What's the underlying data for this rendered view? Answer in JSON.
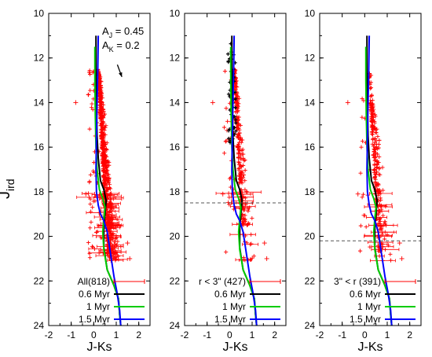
{
  "figure": {
    "ylabel_main": "J",
    "ylabel_sub": "ird"
  },
  "chart_data": [
    {
      "type": "scatter",
      "xlabel": "J-Ks",
      "xlim": [
        -2,
        2.5
      ],
      "ylim": [
        10,
        24
      ],
      "y_inverted": true,
      "xticks": [
        "-2",
        "-1",
        "0",
        "1",
        "2"
      ],
      "yticks": [
        "10",
        "12",
        "14",
        "16",
        "18",
        "20",
        "22",
        "24"
      ],
      "annotation": {
        "aj_label": "A",
        "aj_sub": "J",
        "aj_value": " = 0.45",
        "ak_label": "A",
        "ak_sub": "K",
        "ak_value": " = 0.2"
      },
      "reddening_arrow": {
        "from": [
          1.05,
          12.3
        ],
        "to": [
          1.25,
          12.85
        ]
      },
      "legend": [
        {
          "label": "All(818)",
          "color": "#ff0000",
          "style": "errorbar"
        },
        {
          "label": "0.6 Myr",
          "color": "#000000",
          "style": "line"
        },
        {
          "label": "1 Myr",
          "color": "#00cc00",
          "style": "line"
        },
        {
          "label": "1.5 Myr",
          "color": "#0000ff",
          "style": "line"
        }
      ],
      "dashed_hline": null,
      "highlight_black": false
    },
    {
      "type": "scatter",
      "xlabel": "J-Ks",
      "xlim": [
        -2,
        2.5
      ],
      "ylim": [
        10,
        24
      ],
      "y_inverted": true,
      "xticks": [
        "-2",
        "-1",
        "0",
        "1",
        "2"
      ],
      "yticks": [
        "10",
        "12",
        "14",
        "16",
        "18",
        "20",
        "22",
        "24"
      ],
      "legend": [
        {
          "label": "r < 3\" (427)",
          "color": "#ff0000",
          "style": "errorbar"
        },
        {
          "label": "0.6 Myr",
          "color": "#000000",
          "style": "line"
        },
        {
          "label": "1 Myr",
          "color": "#00cc00",
          "style": "line"
        },
        {
          "label": "1.5 Myr",
          "color": "#0000ff",
          "style": "line"
        }
      ],
      "dashed_hline": 18.5,
      "highlight_black": true
    },
    {
      "type": "scatter",
      "xlabel": "J-Ks",
      "xlim": [
        -2,
        2.5
      ],
      "ylim": [
        10,
        24
      ],
      "y_inverted": true,
      "xticks": [
        "-2",
        "-1",
        "0",
        "1",
        "2"
      ],
      "yticks": [
        "10",
        "12",
        "14",
        "16",
        "18",
        "20",
        "22",
        "24"
      ],
      "legend": [
        {
          "label": "3\" < r (391)",
          "color": "#ff0000",
          "style": "errorbar"
        },
        {
          "label": "0.6 Myr",
          "color": "#000000",
          "style": "line"
        },
        {
          "label": "1 Myr",
          "color": "#00cc00",
          "style": "line"
        },
        {
          "label": "1.5 Myr",
          "color": "#0000ff",
          "style": "line"
        }
      ],
      "dashed_hline": 20.2,
      "highlight_black": false
    }
  ],
  "isochrones": {
    "0.6 Myr": {
      "color": "#000000",
      "x": [
        0.1,
        0.1,
        0.12,
        0.15,
        0.2,
        0.3,
        0.45,
        0.55,
        0.5,
        0.45,
        0.45,
        0.6,
        0.9,
        1.1,
        1.15,
        1.2
      ],
      "y": [
        11.0,
        12.5,
        14.0,
        15.5,
        16.5,
        17.5,
        17.9,
        18.4,
        19.0,
        19.6,
        20.5,
        21.5,
        22.2,
        22.8,
        23.5,
        24.0
      ]
    },
    "1 Myr": {
      "color": "#00cc00",
      "x": [
        0.05,
        0.05,
        0.07,
        0.1,
        0.15,
        0.25,
        0.4,
        0.5,
        0.45,
        0.4,
        0.45,
        0.6,
        0.9,
        1.1,
        1.15,
        1.2
      ],
      "y": [
        11.5,
        13.0,
        14.5,
        16.0,
        17.0,
        17.9,
        18.3,
        18.7,
        19.2,
        19.8,
        20.6,
        21.5,
        22.2,
        22.8,
        23.5,
        24.0
      ]
    },
    "1.5 Myr": {
      "color": "#0000ff",
      "x": [
        0.2,
        0.18,
        0.15,
        0.12,
        0.1,
        0.12,
        0.2,
        0.3,
        0.45,
        0.6,
        0.75,
        0.9,
        1.05,
        1.15,
        1.2
      ],
      "y": [
        11.0,
        12.5,
        14.0,
        15.5,
        17.0,
        18.0,
        18.6,
        19.0,
        19.3,
        19.8,
        20.8,
        21.8,
        22.6,
        23.3,
        24.0
      ]
    }
  }
}
